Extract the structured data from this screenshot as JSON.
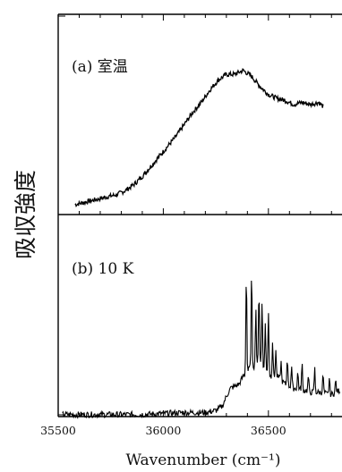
{
  "chart_data": {
    "type": "line",
    "xlabel": "Wavenumber (cm⁻¹)",
    "ylabel": "吸収強度",
    "xlim": [
      35500,
      36850
    ],
    "x_ticks": [
      35500,
      36000,
      36500
    ],
    "x_tick_labels": [
      "35500",
      "36000",
      "36500"
    ],
    "x_minor_step": 100,
    "grid": false,
    "panels": [
      {
        "label": "(a) 室温",
        "ylim": [
          0,
          1
        ],
        "series": [
          {
            "x": [
              35580,
              35620,
              35660,
              35700,
              35740,
              35780,
              35820,
              35860,
              35900,
              35940,
              35980,
              36020,
              36060,
              36100,
              36140,
              36180,
              36220,
              36260,
              36300,
              36340,
              36380,
              36420,
              36460,
              36500,
              36540,
              36580,
              36620,
              36660,
              36700,
              36740,
              36760
            ],
            "values": [
              0.05,
              0.06,
              0.07,
              0.08,
              0.09,
              0.1,
              0.12,
              0.15,
              0.19,
              0.24,
              0.29,
              0.34,
              0.39,
              0.45,
              0.51,
              0.56,
              0.62,
              0.67,
              0.7,
              0.7,
              0.72,
              0.69,
              0.64,
              0.6,
              0.58,
              0.57,
              0.55,
              0.56,
              0.55,
              0.56,
              0.54
            ],
            "noise": 0.012
          }
        ]
      },
      {
        "label": "(b) 10 K",
        "ylim": [
          0,
          1
        ],
        "series": [
          {
            "x": [
              35520,
              35700,
              35900,
              36100,
              36200,
              36250,
              36280,
              36300,
              36320,
              36340,
              36360,
              36380,
              36400,
              36420,
              36440,
              36460,
              36480,
              36500,
              36520,
              36540,
              36560,
              36580,
              36600,
              36620,
              36640,
              36660,
              36680,
              36700,
              36720,
              36740,
              36760,
              36780,
              36800,
              36820,
              36840
            ],
            "values": [
              0.01,
              0.01,
              0.01,
              0.02,
              0.02,
              0.03,
              0.05,
              0.1,
              0.14,
              0.15,
              0.16,
              0.2,
              0.22,
              0.26,
              0.24,
              0.27,
              0.23,
              0.21,
              0.19,
              0.2,
              0.18,
              0.16,
              0.15,
              0.14,
              0.14,
              0.13,
              0.13,
              0.12,
              0.12,
              0.12,
              0.12,
              0.11,
              0.11,
              0.12,
              0.13
            ],
            "noise": 0.015
          }
        ],
        "peaks": [
          {
            "x": 36395,
            "value": 0.73
          },
          {
            "x": 36420,
            "value": 0.72
          },
          {
            "x": 36440,
            "value": 0.55
          },
          {
            "x": 36455,
            "value": 0.65
          },
          {
            "x": 36470,
            "value": 0.58
          },
          {
            "x": 36485,
            "value": 0.47
          },
          {
            "x": 36500,
            "value": 0.53
          },
          {
            "x": 36520,
            "value": 0.38
          },
          {
            "x": 36535,
            "value": 0.33
          },
          {
            "x": 36560,
            "value": 0.27
          },
          {
            "x": 36590,
            "value": 0.3
          },
          {
            "x": 36610,
            "value": 0.25
          },
          {
            "x": 36640,
            "value": 0.22
          },
          {
            "x": 36660,
            "value": 0.26
          },
          {
            "x": 36690,
            "value": 0.2
          },
          {
            "x": 36720,
            "value": 0.24
          },
          {
            "x": 36760,
            "value": 0.21
          },
          {
            "x": 36790,
            "value": 0.19
          },
          {
            "x": 36820,
            "value": 0.18
          }
        ]
      }
    ]
  }
}
